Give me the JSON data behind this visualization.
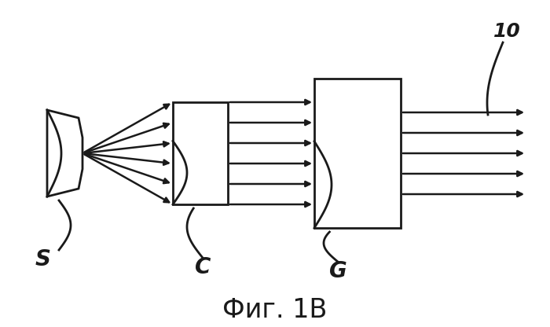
{
  "title": "Фиг. 1В",
  "title_fontsize": 24,
  "bg_color": "#ffffff",
  "fg_color": "#1a1a1a",
  "source_label": "S",
  "block_c_label": "C",
  "block_g_label": "G",
  "num_label": "10",
  "fig_width": 7.0,
  "fig_height": 4.16,
  "dpi": 100
}
